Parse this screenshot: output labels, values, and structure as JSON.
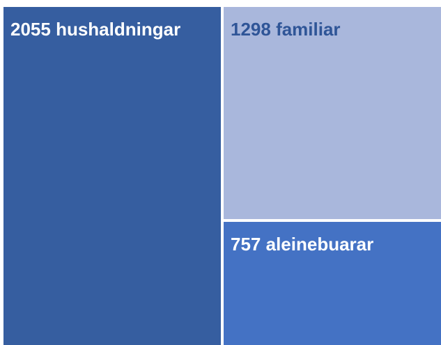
{
  "chart_data": {
    "type": "treemap",
    "categories": [
      "hushaldningar",
      "familiar",
      "aleinebuarar"
    ],
    "values": [
      2055,
      1298,
      757
    ],
    "value_labels": [
      "2055 hushaldningar",
      "1298 familiar",
      "757 aleinebuarar"
    ],
    "colors": [
      "#365ea0",
      "#a9b7dc",
      "#4472c4"
    ],
    "label_colors": [
      "#ffffff",
      "#2f5597",
      "#ffffff"
    ]
  }
}
